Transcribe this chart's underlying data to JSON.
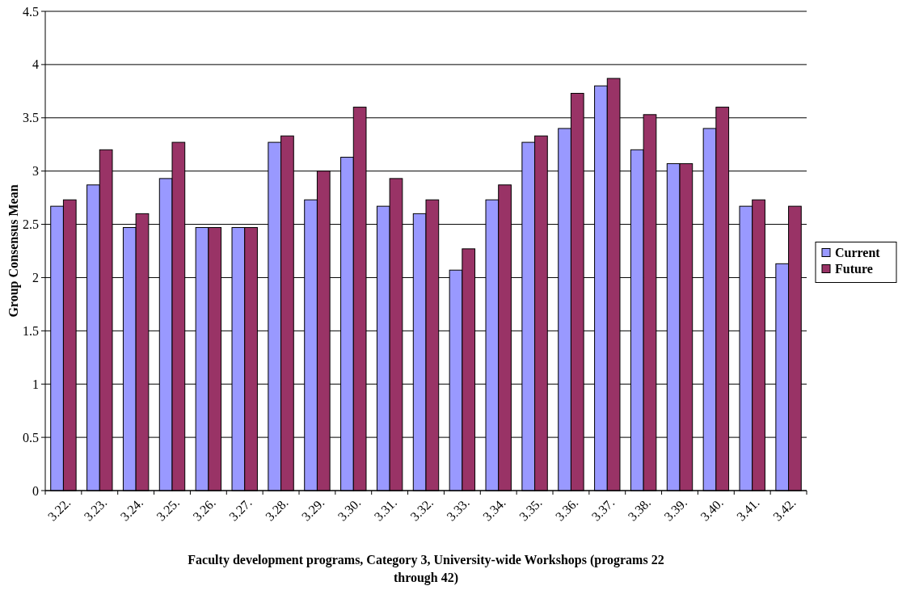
{
  "chart_data": {
    "type": "bar",
    "ylabel": "Group Consensus Mean",
    "xlabel": "Faculty development programs, Category 3, University-wide Workshops (programs 22 through 42)",
    "categories": [
      "3.22.",
      "3.23.",
      "3.24.",
      "3.25.",
      "3.26.",
      "3.27.",
      "3.28.",
      "3.29.",
      "3.30.",
      "3.31.",
      "3.32.",
      "3.33.",
      "3.34.",
      "3.35.",
      "3.36.",
      "3.37.",
      "3.38.",
      "3.39.",
      "3.40.",
      "3.41.",
      "3.42."
    ],
    "series": [
      {
        "name": "Current",
        "color": "#9999ff",
        "values": [
          2.67,
          2.87,
          2.47,
          2.93,
          2.47,
          2.47,
          3.27,
          2.73,
          3.13,
          2.67,
          2.6,
          2.07,
          2.73,
          3.27,
          3.4,
          3.8,
          3.2,
          3.07,
          3.4,
          2.67,
          2.13
        ]
      },
      {
        "name": "Future",
        "color": "#993366",
        "values": [
          2.73,
          3.2,
          2.6,
          3.27,
          2.47,
          2.47,
          3.33,
          3.0,
          3.6,
          2.93,
          2.73,
          2.27,
          2.87,
          3.33,
          3.73,
          3.87,
          3.53,
          3.07,
          3.6,
          2.73,
          2.67
        ]
      }
    ],
    "ylim": [
      0,
      4.5
    ],
    "yticks": [
      0,
      0.5,
      1,
      1.5,
      2,
      2.5,
      3,
      3.5,
      4,
      4.5
    ],
    "grid": "y",
    "legend": "right"
  }
}
